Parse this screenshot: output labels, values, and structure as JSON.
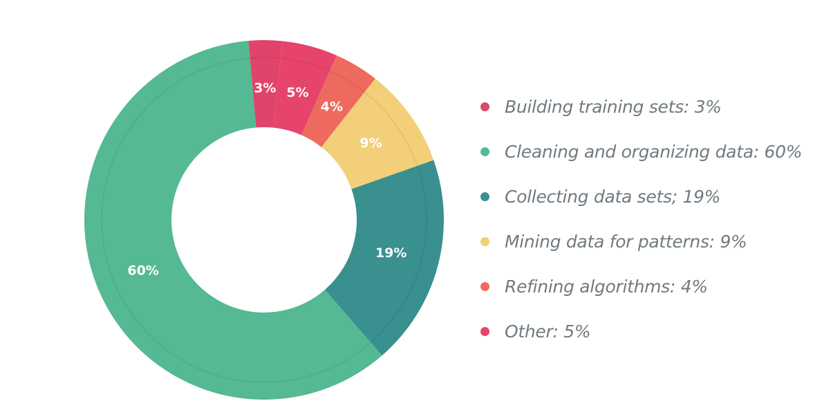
{
  "chart_data": {
    "type": "pie",
    "style": "donut",
    "slices": [
      {
        "label": "Building training sets: 3%",
        "value": 3,
        "display": "3%",
        "color": "#e0446a"
      },
      {
        "label": "Other: 5%",
        "value": 5,
        "display": "5%",
        "color": "#e6446a"
      },
      {
        "label": "Refining algorithms: 4%",
        "value": 4,
        "display": "4%",
        "color": "#ee6a5e"
      },
      {
        "label": "Mining data for patterns: 9%",
        "value": 9,
        "display": "9%",
        "color": "#f2cf78"
      },
      {
        "label": "Collecting data sets; 19%",
        "value": 19,
        "display": "19%",
        "color": "#3a8f8f"
      },
      {
        "label": "Cleaning and organizing data: 60%",
        "value": 60,
        "display": "60%",
        "color": "#55b993"
      }
    ],
    "legend": [
      {
        "label": "Building training sets: 3%",
        "color": "#d94a6a"
      },
      {
        "label": "Cleaning and organizing data: 60%",
        "color": "#55b993"
      },
      {
        "label": "Collecting data sets; 19%",
        "color": "#3a8f8f"
      },
      {
        "label": "Mining data for patterns: 9%",
        "color": "#f2cf78"
      },
      {
        "label": "Refining algorithms: 4%",
        "color": "#ee6a5e"
      },
      {
        "label": "Other: 5%",
        "color": "#e6446a"
      }
    ],
    "legend_position": "right"
  }
}
